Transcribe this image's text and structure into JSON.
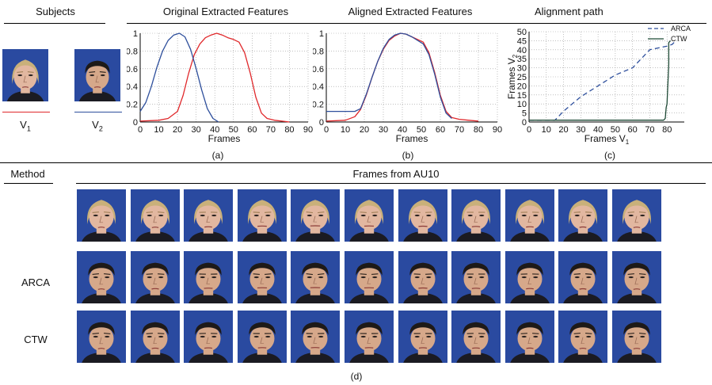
{
  "headers": {
    "subjects": "Subjects",
    "original": "Original Extracted Features",
    "aligned": "Aligned Extracted Features",
    "alignment": "Alignment path",
    "method": "Method",
    "frames": "Frames from AU10"
  },
  "subjects": {
    "v1_label": "V",
    "v1_sub": "1",
    "v2_label": "V",
    "v2_sub": "2",
    "v1_color": "#e0282b",
    "v2_color": "#2e4f9c"
  },
  "panel_labels": {
    "a": "(a)",
    "b": "(b)",
    "c": "(c)",
    "d": "(d)"
  },
  "methods": [
    "ARCA",
    "CTW"
  ],
  "face_colors": {
    "background": "#2a4aa0",
    "female_skin": "#e2b7a0",
    "female_hair": "#c9b07a",
    "male_skin": "#d6a88a",
    "male_hair": "#1e1a18",
    "clothing": "#1b1b22"
  },
  "frames_per_row": 11,
  "chart_data": [
    {
      "id": "a",
      "type": "line",
      "xlabel": "Frames",
      "xlim": [
        0,
        90
      ],
      "ylim": [
        0,
        1
      ],
      "xticks": [
        0,
        10,
        20,
        30,
        40,
        50,
        60,
        70,
        80,
        90
      ],
      "yticks": [
        0,
        0.2,
        0.4,
        0.6,
        0.8,
        1
      ],
      "ytick_labels": [
        "0",
        "0.2",
        "0.4",
        "0.6",
        "0.8",
        "1"
      ],
      "grid": true,
      "series": [
        {
          "color": "#e0282b",
          "x": [
            0,
            10,
            15,
            20,
            23,
            26,
            29,
            32,
            35,
            38,
            41,
            44,
            47,
            50,
            53,
            56,
            59,
            62,
            65,
            68,
            72,
            76,
            80
          ],
          "y": [
            0.01,
            0.02,
            0.04,
            0.12,
            0.3,
            0.55,
            0.76,
            0.88,
            0.95,
            0.98,
            1.0,
            0.98,
            0.95,
            0.93,
            0.9,
            0.78,
            0.55,
            0.28,
            0.1,
            0.04,
            0.02,
            0.01,
            0.0
          ]
        },
        {
          "color": "#2e4f9c",
          "x": [
            0,
            3,
            6,
            9,
            12,
            15,
            18,
            21,
            24,
            27,
            30,
            33,
            36,
            39,
            42
          ],
          "y": [
            0.12,
            0.22,
            0.4,
            0.62,
            0.8,
            0.92,
            0.98,
            1.0,
            0.96,
            0.82,
            0.6,
            0.36,
            0.15,
            0.04,
            0.0
          ]
        }
      ]
    },
    {
      "id": "b",
      "type": "line",
      "xlabel": "Frames",
      "xlim": [
        0,
        90
      ],
      "ylim": [
        0,
        1
      ],
      "xticks": [
        0,
        10,
        20,
        30,
        40,
        50,
        60,
        70,
        80,
        90
      ],
      "yticks": [
        0,
        0.2,
        0.4,
        0.6,
        0.8,
        1
      ],
      "ytick_labels": [
        "0",
        "0.2",
        "0.4",
        "0.6",
        "0.8",
        "1"
      ],
      "grid": true,
      "series": [
        {
          "color": "#e0282b",
          "x": [
            0,
            10,
            15,
            18,
            21,
            24,
            27,
            30,
            33,
            36,
            39,
            42,
            45,
            48,
            51,
            54,
            57,
            60,
            63,
            66,
            70,
            75,
            80
          ],
          "y": [
            0.01,
            0.02,
            0.06,
            0.14,
            0.3,
            0.5,
            0.68,
            0.82,
            0.92,
            0.97,
            1.0,
            0.99,
            0.96,
            0.93,
            0.9,
            0.78,
            0.56,
            0.3,
            0.12,
            0.05,
            0.03,
            0.02,
            0.01
          ]
        },
        {
          "color": "#2e4f9c",
          "x": [
            0,
            10,
            15,
            18,
            21,
            24,
            27,
            30,
            33,
            36,
            39,
            42,
            45,
            48,
            51,
            54,
            57,
            60,
            63,
            66
          ],
          "y": [
            0.12,
            0.12,
            0.12,
            0.15,
            0.31,
            0.5,
            0.68,
            0.83,
            0.93,
            0.98,
            1.0,
            0.99,
            0.96,
            0.92,
            0.88,
            0.76,
            0.54,
            0.28,
            0.1,
            0.04
          ]
        }
      ]
    },
    {
      "id": "c",
      "type": "line",
      "xlabel": "Frames V",
      "xlabel_sub": "1",
      "ylabel": "Frames V",
      "ylabel_sub": "2",
      "xlim": [
        0,
        90
      ],
      "ylim": [
        0,
        50
      ],
      "xticks": [
        0,
        10,
        20,
        30,
        40,
        50,
        60,
        70,
        80
      ],
      "yticks": [
        0,
        5,
        10,
        15,
        20,
        25,
        30,
        35,
        40,
        45,
        50
      ],
      "ytick_labels": [
        "0",
        "5",
        "10",
        "15",
        "20",
        "25",
        "30",
        "35",
        "40",
        "45",
        "50"
      ],
      "grid": true,
      "legend": "top-right",
      "series": [
        {
          "name": "ARCA",
          "color": "#2e4f9c",
          "dash": true,
          "x": [
            0,
            15,
            20,
            30,
            40,
            50,
            60,
            65,
            70,
            75,
            80,
            83,
            85
          ],
          "y": [
            1,
            1,
            6,
            14,
            20,
            26,
            30,
            35,
            40,
            41,
            42,
            43,
            45
          ]
        },
        {
          "name": "CTW",
          "color": "#1f4a36",
          "dash": false,
          "x": [
            0,
            78,
            79,
            79.5,
            80,
            81,
            81,
            82
          ],
          "y": [
            1,
            1,
            2,
            8,
            10,
            32,
            44,
            45
          ]
        }
      ]
    }
  ]
}
